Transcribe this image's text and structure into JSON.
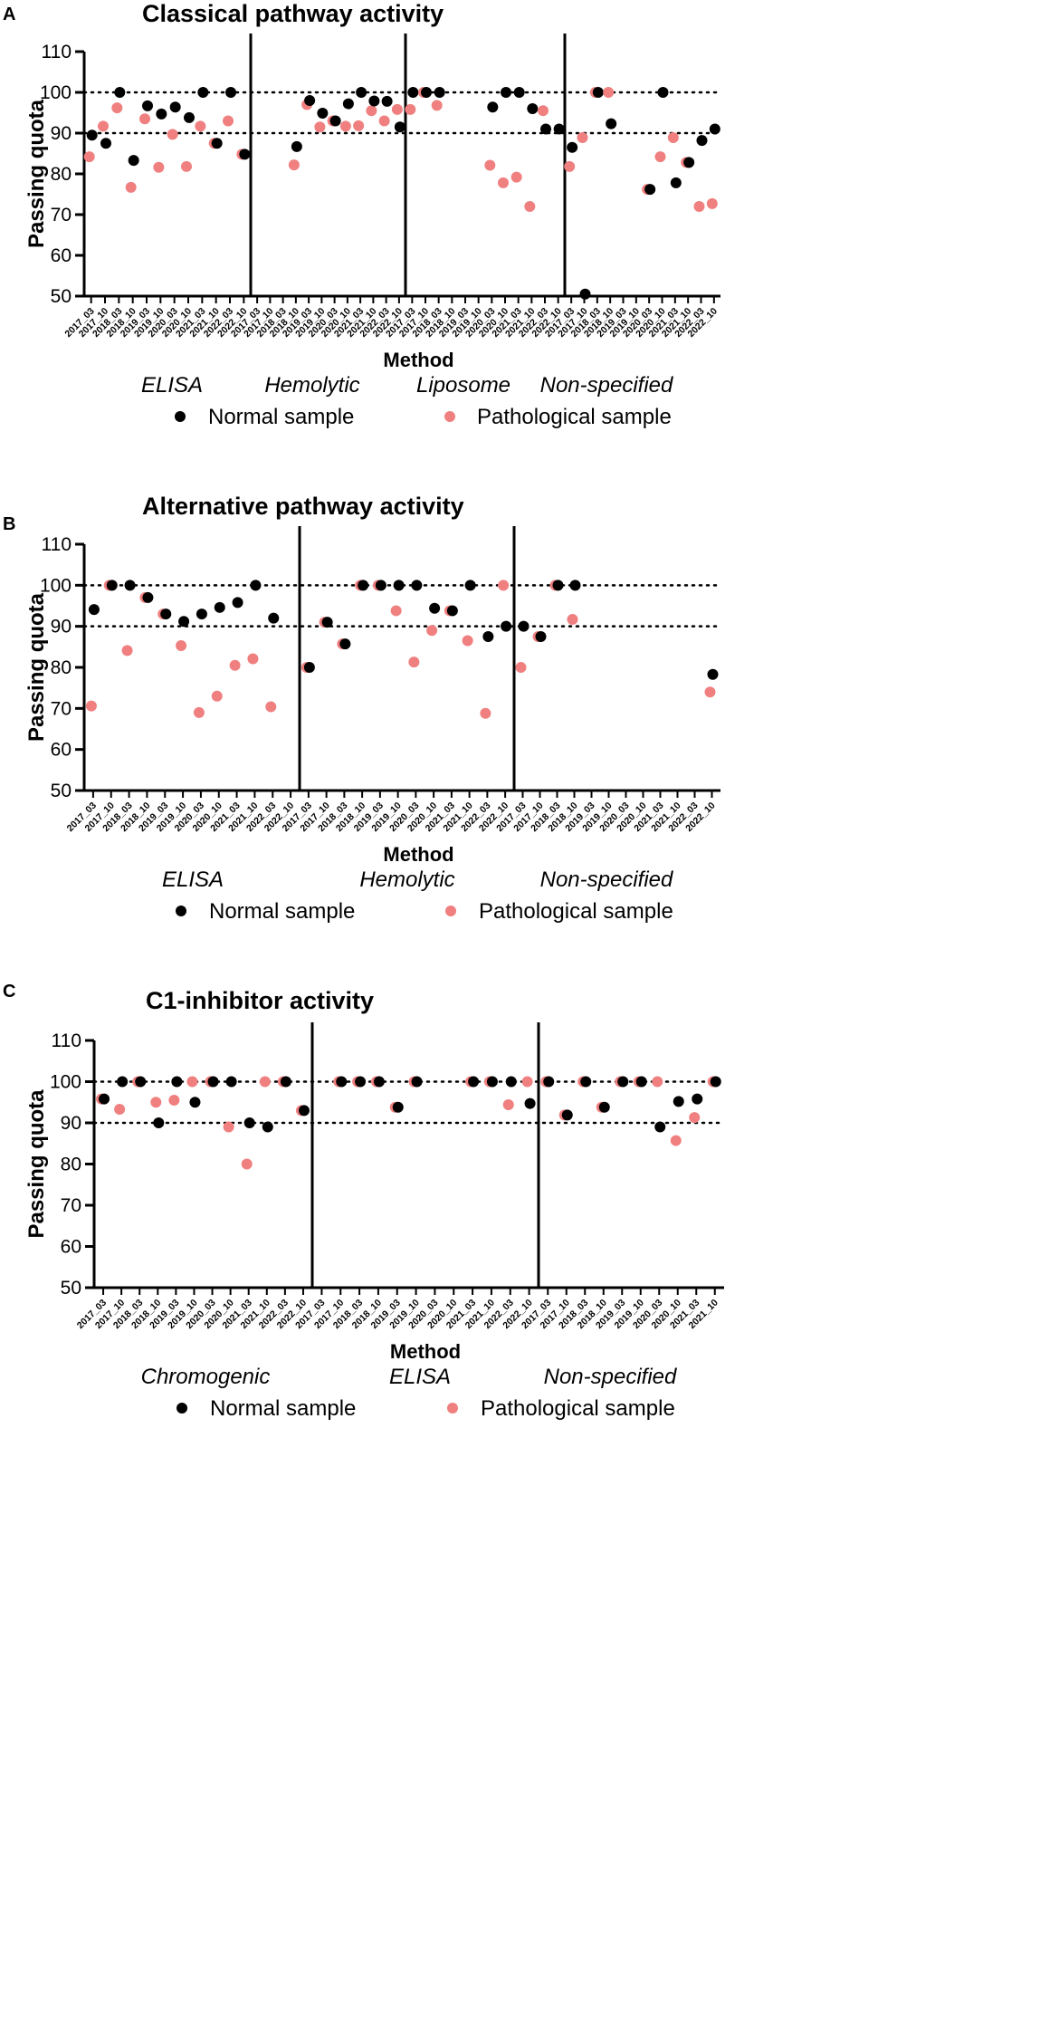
{
  "figure": {
    "colors": {
      "normal": "#000000",
      "pathological": "#f08080",
      "axis": "#000000"
    }
  },
  "chart_data": [
    {
      "type": "scatter",
      "panel": "A",
      "title": "Classical pathway activity",
      "xlabel": "Method",
      "ylabel": "Passing quota",
      "ylim": [
        50,
        110
      ],
      "yticks": [
        "50",
        "60",
        "70",
        "80",
        "90",
        "100",
        "110"
      ],
      "reference_lines": [
        90,
        100
      ],
      "legend": [
        "Normal sample",
        "Pathological sample"
      ],
      "groups": [
        {
          "method": "ELISA",
          "categories": [
            "2017_03",
            "2017_10",
            "2018_03",
            "2018_10",
            "2019_03",
            "2019_10",
            "2020_03",
            "2020_10",
            "2021_03",
            "2021_10",
            "2022_03",
            "2022_10"
          ],
          "normal": [
            89.5,
            87.5,
            100,
            83.3,
            96.7,
            94.7,
            96.4,
            93.8,
            100,
            87.5,
            100,
            84.8
          ],
          "pathological": [
            84.2,
            91.7,
            96.2,
            76.7,
            93.5,
            81.6,
            89.7,
            81.8,
            91.7,
            87.5,
            93.0,
            84.8
          ]
        },
        {
          "method": "Hemolytic",
          "categories": [
            "2017_03",
            "2017_10",
            "2018_03",
            "2018_10",
            "2019_03",
            "2019_10",
            "2020_03",
            "2020_10",
            "2021_03",
            "2021_10",
            "2022_03",
            "2022_10"
          ],
          "normal": [
            null,
            null,
            null,
            86.7,
            98.0,
            94.9,
            93.0,
            97.2,
            100,
            97.9,
            97.8,
            91.5
          ],
          "pathological": [
            null,
            null,
            null,
            82.2,
            97.0,
            91.5,
            93.0,
            91.7,
            91.8,
            95.5,
            93.0,
            95.8
          ]
        },
        {
          "method": "Liposome",
          "categories": [
            "2017_03",
            "2017_10",
            "2018_03",
            "2018_10",
            "2019_03",
            "2019_10",
            "2020_03",
            "2020_10",
            "2021_03",
            "2021_10",
            "2022_03",
            "2022_10"
          ],
          "normal": [
            100,
            100,
            100,
            null,
            null,
            null,
            96.4,
            100,
            100,
            96.0,
            91.0,
            91.0
          ],
          "pathological": [
            95.8,
            100,
            96.8,
            null,
            null,
            null,
            82.1,
            77.8,
            79.2,
            72.0,
            95.5,
            null
          ]
        },
        {
          "method": "Non-specified",
          "categories": [
            "2017_03",
            "2017_10",
            "2018_03",
            "2018_10",
            "2019_03",
            "2019_10",
            "2020_03",
            "2020_10",
            "2021_03",
            "2021_10",
            "2022_03",
            "2022_10"
          ],
          "normal": [
            86.5,
            50.5,
            100,
            92.3,
            null,
            null,
            76.2,
            100,
            77.8,
            82.8,
            88.2,
            91.0
          ],
          "pathological": [
            81.8,
            88.9,
            100,
            100,
            null,
            null,
            76.2,
            84.2,
            88.9,
            82.8,
            72.0,
            72.7
          ]
        }
      ]
    },
    {
      "type": "scatter",
      "panel": "B",
      "title": "Alternative pathway activity",
      "xlabel": "Method",
      "ylabel": "Passing quota",
      "ylim": [
        50,
        110
      ],
      "yticks": [
        "50",
        "60",
        "70",
        "80",
        "90",
        "100",
        "110"
      ],
      "reference_lines": [
        90,
        100
      ],
      "legend": [
        "Normal sample",
        "Pathological sample"
      ],
      "groups": [
        {
          "method": "ELISA",
          "categories": [
            "2017_03",
            "2017_10",
            "2018_03",
            "2018_10",
            "2019_03",
            "2019_10",
            "2020_03",
            "2020_10",
            "2021_03",
            "2021_10",
            "2022_03",
            "2022_10"
          ],
          "normal": [
            94.1,
            100,
            100,
            97.0,
            93.0,
            91.2,
            93.0,
            94.6,
            95.8,
            100,
            92.0,
            null
          ],
          "pathological": [
            70.6,
            100,
            84.1,
            97.0,
            93.0,
            85.3,
            69.0,
            73.0,
            80.5,
            82.1,
            70.4,
            null
          ]
        },
        {
          "method": "Hemolytic",
          "categories": [
            "2017_03",
            "2017_10",
            "2018_03",
            "2018_10",
            "2019_03",
            "2019_10",
            "2020_03",
            "2020_10",
            "2021_03",
            "2021_10",
            "2022_03",
            "2022_10"
          ],
          "normal": [
            80.0,
            91.0,
            85.7,
            100,
            100,
            100,
            100,
            94.4,
            93.8,
            100,
            87.5,
            90.0
          ],
          "pathological": [
            80.0,
            91.0,
            85.7,
            100,
            100,
            93.8,
            81.3,
            89.0,
            93.8,
            86.5,
            68.8,
            100
          ]
        },
        {
          "method": "Non-specified",
          "categories": [
            "2017_03",
            "2017_10",
            "2018_03",
            "2018_10",
            "2019_03",
            "2019_10",
            "2020_03",
            "2020_10",
            "2021_03",
            "2021_10",
            "2022_03",
            "2022_10"
          ],
          "normal": [
            90.0,
            87.5,
            100,
            100,
            null,
            null,
            null,
            null,
            null,
            null,
            null,
            78.3
          ],
          "pathological": [
            80.0,
            87.5,
            100,
            91.7,
            null,
            null,
            null,
            null,
            null,
            null,
            null,
            74.0
          ]
        }
      ]
    },
    {
      "type": "scatter",
      "panel": "C",
      "title": "C1-inhibitor activity",
      "xlabel": "Method",
      "ylabel": "Passing quota",
      "ylim": [
        50,
        110
      ],
      "yticks": [
        "50",
        "60",
        "70",
        "80",
        "90",
        "100",
        "110"
      ],
      "reference_lines": [
        90,
        100
      ],
      "legend": [
        "Normal sample",
        "Pathological sample"
      ],
      "groups": [
        {
          "method": "Chromogenic",
          "categories": [
            "2017_03",
            "2017_10",
            "2018_03",
            "2018_10",
            "2019_03",
            "2019_10",
            "2020_03",
            "2020_10",
            "2021_03",
            "2021_10",
            "2022_03",
            "2022_10"
          ],
          "normal": [
            95.8,
            100,
            100,
            90.0,
            100,
            95.0,
            100,
            100,
            90.0,
            89.0,
            100,
            93.0
          ],
          "pathological": [
            95.8,
            93.3,
            100,
            95.0,
            95.5,
            100,
            100,
            89.0,
            80.0,
            100,
            100,
            93.0
          ]
        },
        {
          "method": "ELISA",
          "categories": [
            "2017_03",
            "2017_10",
            "2018_03",
            "2018_10",
            "2019_03",
            "2019_10",
            "2020_03",
            "2020_10",
            "2021_03",
            "2021_10",
            "2022_03",
            "2022_10"
          ],
          "normal": [
            null,
            100,
            100,
            100,
            93.8,
            100,
            null,
            null,
            100,
            100,
            100,
            94.7
          ],
          "pathological": [
            null,
            100,
            100,
            100,
            93.8,
            100,
            null,
            null,
            100,
            100,
            94.4,
            100
          ]
        },
        {
          "method": "Non-specified",
          "categories": [
            "2017_03",
            "2017_10",
            "2018_03",
            "2018_10",
            "2019_03",
            "2019_10",
            "2020_03",
            "2020_10",
            "2021_03",
            "2021_10"
          ],
          "normal": [
            100,
            91.9,
            100,
            93.8,
            100,
            100,
            89.0,
            95.2,
            95.8,
            100
          ],
          "pathological": [
            100,
            91.9,
            100,
            93.8,
            100,
            100,
            100,
            85.7,
            91.3,
            100
          ]
        }
      ]
    }
  ]
}
